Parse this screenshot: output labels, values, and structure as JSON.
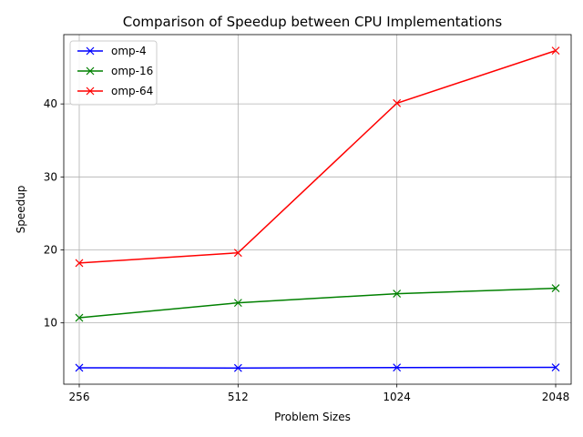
{
  "chart_data": {
    "type": "line",
    "title": "Comparison of Speedup between CPU Implementations",
    "xlabel": "Problem Sizes",
    "ylabel": "Speedup",
    "categories": [
      "256",
      "512",
      "1024",
      "2048"
    ],
    "ylim": [
      1.6,
      49.5
    ],
    "yticks": [
      10,
      20,
      30,
      40
    ],
    "grid": true,
    "legend_position": "top-left",
    "marker": "x",
    "series": [
      {
        "name": "omp-4",
        "color": "#0000ff",
        "values": [
          3.85,
          3.82,
          3.88,
          3.9
        ]
      },
      {
        "name": "omp-16",
        "color": "#008000",
        "values": [
          10.7,
          12.75,
          14.0,
          14.75
        ]
      },
      {
        "name": "omp-64",
        "color": "#ff0000",
        "values": [
          18.2,
          19.6,
          40.1,
          47.3
        ]
      }
    ]
  }
}
